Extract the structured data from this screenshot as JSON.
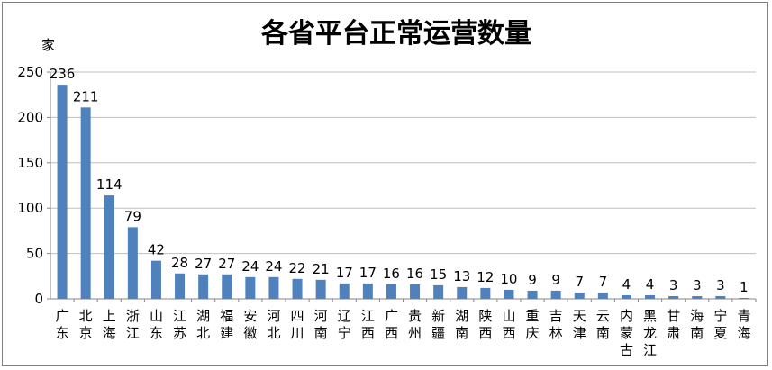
{
  "chart_data": {
    "type": "bar",
    "title": "各省平台正常运营数量",
    "ylabel": "家",
    "xlabel": "",
    "ylim": [
      0,
      250
    ],
    "yticks": [
      0,
      50,
      100,
      150,
      200,
      250
    ],
    "grid": true,
    "bar_color": "#4f81bd",
    "grid_color": "#bfbfbf",
    "categories": [
      "广东",
      "北京",
      "上海",
      "浙江",
      "山东",
      "江苏",
      "湖北",
      "福建",
      "安徽",
      "河北",
      "四川",
      "河南",
      "辽宁",
      "江西",
      "广西",
      "贵州",
      "新疆",
      "湖南",
      "陕西",
      "山西",
      "重庆",
      "吉林",
      "天津",
      "云南",
      "内蒙古",
      "黑龙江",
      "甘肃",
      "海南",
      "宁夏",
      "青海"
    ],
    "values": [
      236,
      211,
      114,
      79,
      42,
      28,
      27,
      27,
      24,
      24,
      22,
      21,
      17,
      17,
      16,
      16,
      15,
      13,
      12,
      10,
      9,
      9,
      7,
      7,
      4,
      4,
      3,
      3,
      3,
      1
    ]
  }
}
